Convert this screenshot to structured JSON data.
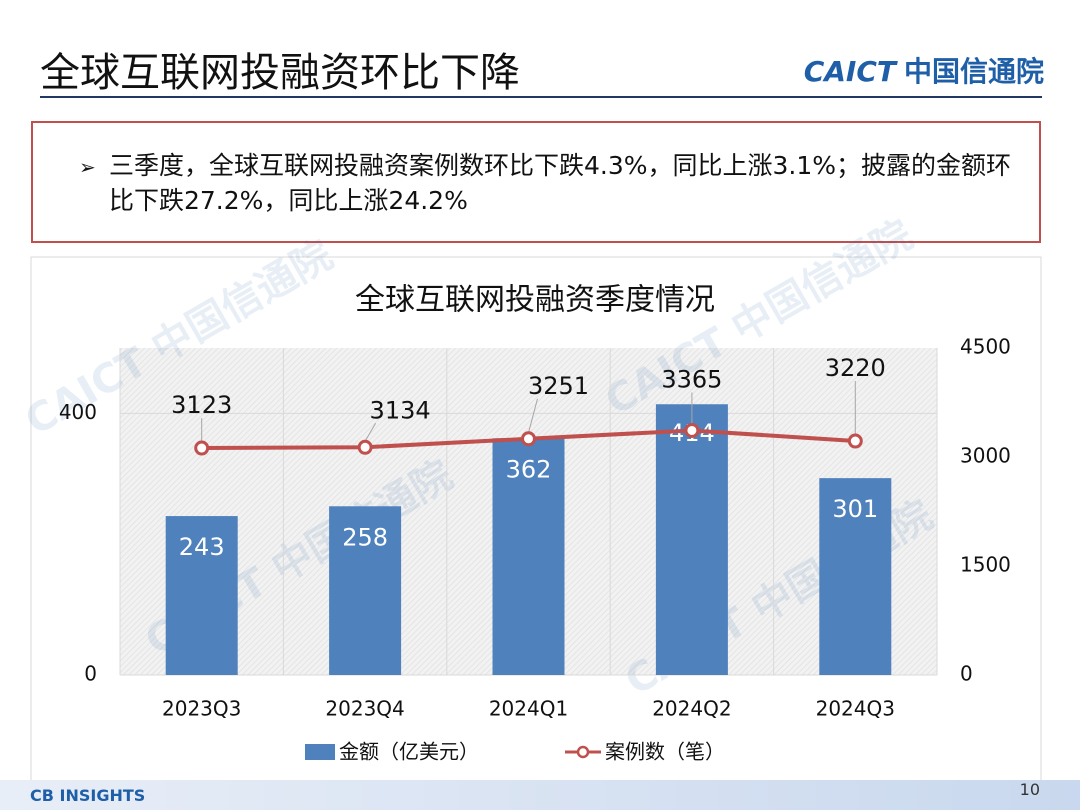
{
  "slide_title": "全球互联网投融资环比下降",
  "logo": {
    "caict": "CAICT",
    "org": "中国信通院"
  },
  "bullet": "三季度，全球互联网投融资案例数环比下跌4.3%，同比上涨3.1%；披露的金额环比下跌27.2%，同比上涨24.2%",
  "watermark": "CAICT 中国信通院",
  "footer": {
    "source": "CB INSIGHTS",
    "page": "10"
  },
  "chart_data": {
    "type": "bar_line",
    "title": "全球互联网投融资季度情况",
    "categories": [
      "2023Q3",
      "2023Q4",
      "2024Q1",
      "2024Q2",
      "2024Q3"
    ],
    "series": [
      {
        "name": "金额（亿美元）",
        "color": "#4f81bd",
        "type": "bar",
        "values": [
          243,
          258,
          362,
          414,
          301
        ]
      },
      {
        "name": "案例数（笔）",
        "color": "#c0504d",
        "type": "line",
        "axis": "y2",
        "values": [
          3123,
          3134,
          3251,
          3365,
          3220
        ]
      }
    ],
    "ylim": [
      0,
      500
    ],
    "yticks": [
      0,
      400
    ],
    "y2lim": [
      0,
      4500
    ],
    "y2ticks": [
      0,
      1500,
      3000,
      4500
    ],
    "grid": true,
    "legend": "bottom"
  }
}
